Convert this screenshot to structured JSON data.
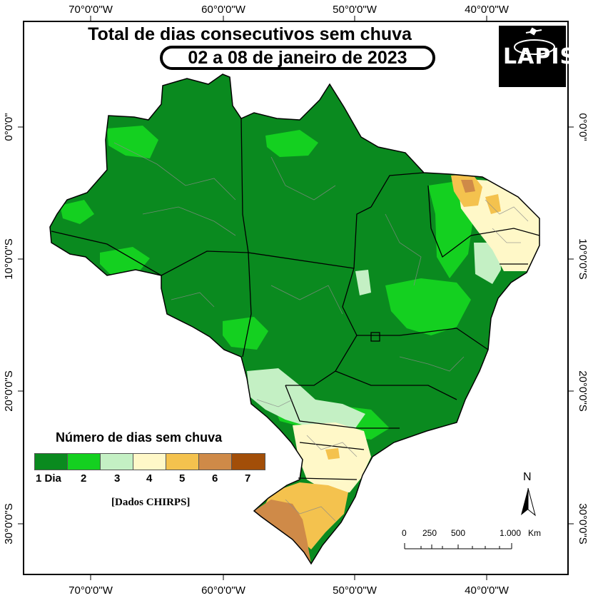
{
  "title": "Total de dias consecutivos sem chuva",
  "date_range": "02 a 08 de janeiro de 2023",
  "logo_text": "LAPIS",
  "axes": {
    "longitudes": [
      "70°0'0\"W",
      "60°0'0\"W",
      "50°0'0\"W",
      "40°0'0\"W"
    ],
    "latitudes": [
      "0°0'0\"",
      "10°0'0\"S",
      "20°0'0\"S",
      "30°0'0\"S"
    ]
  },
  "legend": {
    "title": "Número de dias sem chuva",
    "classes": [
      {
        "label": "1 Dia",
        "color": "#0a8a1f"
      },
      {
        "label": "2",
        "color": "#14d020"
      },
      {
        "label": "3",
        "color": "#c4f0c4"
      },
      {
        "label": "4",
        "color": "#fff8c8"
      },
      {
        "label": "5",
        "color": "#f4c24e"
      },
      {
        "label": "6",
        "color": "#cf8a48"
      },
      {
        "label": "7",
        "color": "#a24e08"
      }
    ]
  },
  "source": "[Dados CHIRPS]",
  "north_arrow": "N",
  "scale_bar": {
    "ticks": [
      "0",
      "250",
      "500",
      "1.000"
    ],
    "unit": "Km"
  },
  "colors": {
    "background": "#ffffff",
    "frame": "#000000",
    "state_border": "#000000",
    "municipal_border": "#8a8a8a"
  }
}
